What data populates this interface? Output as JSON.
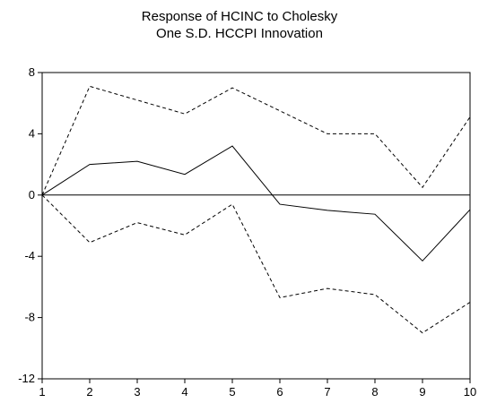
{
  "chart_data": {
    "type": "line",
    "title": "Response of HCINC to Cholesky",
    "subtitle": "One S.D. HCCPI Innovation",
    "xlabel": "",
    "ylabel": "",
    "x": [
      1,
      2,
      3,
      4,
      5,
      6,
      7,
      8,
      9,
      10
    ],
    "xlim": [
      1,
      10
    ],
    "ylim": [
      -12,
      8
    ],
    "yticks": [
      8,
      4,
      0,
      -4,
      -8,
      -12
    ],
    "xticks": [
      1,
      2,
      3,
      4,
      5,
      6,
      7,
      8,
      9,
      10
    ],
    "grid": false,
    "zero_line": true,
    "series": [
      {
        "role": "response",
        "style": "solid",
        "values": [
          0,
          2.0,
          2.2,
          1.35,
          3.2,
          -0.6,
          -1.0,
          -1.25,
          -4.3,
          -0.95
        ]
      },
      {
        "role": "upper_band",
        "style": "dashed",
        "values": [
          0,
          7.1,
          6.2,
          5.3,
          7.0,
          5.5,
          4.0,
          4.0,
          0.5,
          5.1
        ]
      },
      {
        "role": "lower_band",
        "style": "dashed",
        "values": [
          0,
          -3.1,
          -1.8,
          -2.6,
          -0.6,
          -6.7,
          -6.1,
          -6.5,
          -9.0,
          -7.0
        ]
      }
    ]
  }
}
